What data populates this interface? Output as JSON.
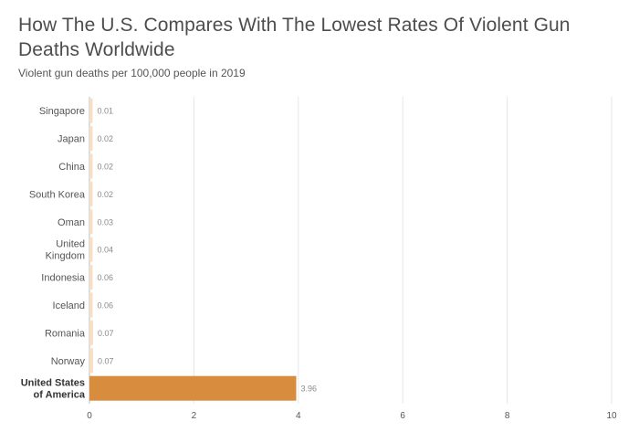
{
  "title": "How The U.S. Compares With The Lowest Rates Of Violent Gun Deaths Worldwide",
  "subtitle": "Violent gun deaths per 100,000 people in 2019",
  "colors": {
    "bar": "#f6dfc4",
    "highlight_bar": "#d88d3e",
    "grid": "#e6e6e6",
    "axis": "#bbbbbb"
  },
  "chart_data": {
    "type": "bar",
    "orientation": "horizontal",
    "categories": [
      "Singapore",
      "Japan",
      "China",
      "South Korea",
      "Oman",
      "United Kingdom",
      "Indonesia",
      "Iceland",
      "Romania",
      "Norway",
      "United States of America"
    ],
    "category_lines": [
      [
        "Singapore"
      ],
      [
        "Japan"
      ],
      [
        "China"
      ],
      [
        "South Korea"
      ],
      [
        "Oman"
      ],
      [
        "United",
        "Kingdom"
      ],
      [
        "Indonesia"
      ],
      [
        "Iceland"
      ],
      [
        "Romania"
      ],
      [
        "Norway"
      ],
      [
        "United States",
        "of America"
      ]
    ],
    "values": [
      0.01,
      0.02,
      0.02,
      0.02,
      0.03,
      0.04,
      0.06,
      0.06,
      0.07,
      0.07,
      3.96
    ],
    "value_labels": [
      "0.01",
      "0.02",
      "0.02",
      "0.02",
      "0.03",
      "0.04",
      "0.06",
      "0.06",
      "0.07",
      "0.07",
      "3.96"
    ],
    "highlight": "United States of America",
    "x_ticks": [
      0,
      2,
      4,
      6,
      8,
      10
    ],
    "xlim": [
      0,
      10
    ],
    "grid": true
  }
}
